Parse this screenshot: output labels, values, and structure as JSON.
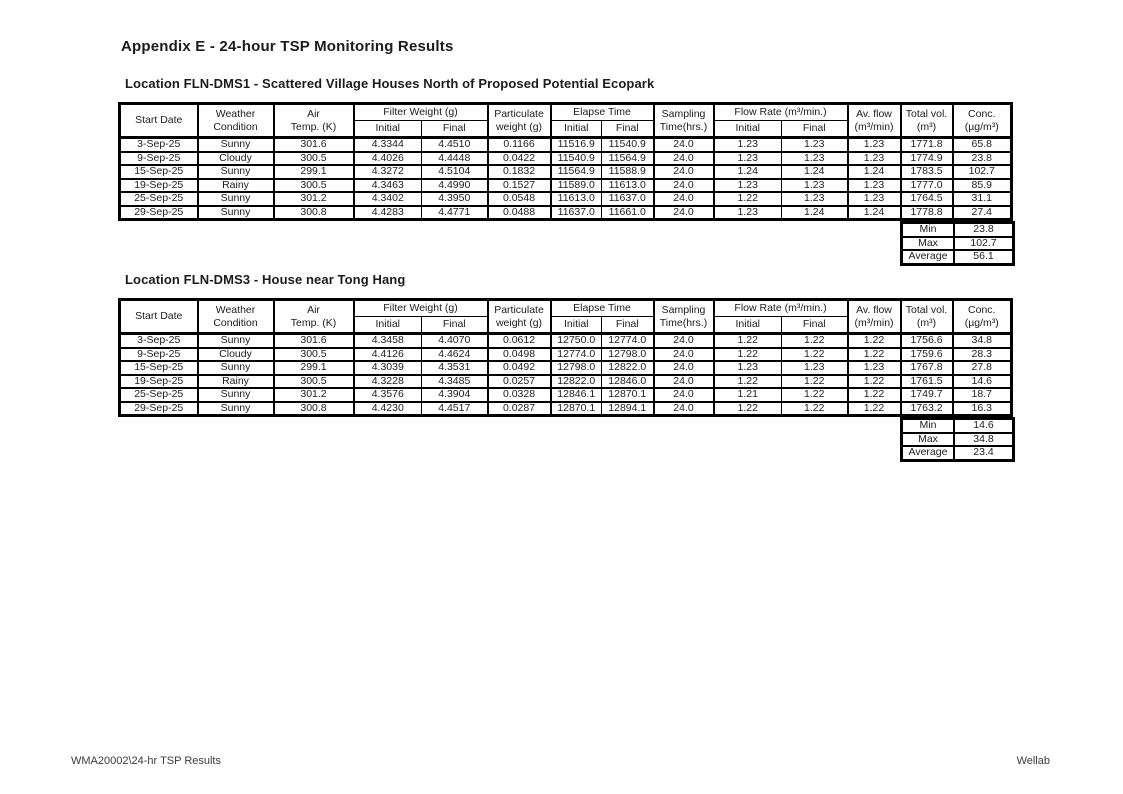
{
  "page": {
    "title": "Appendix E - 24-hour TSP Monitoring Results",
    "footer_left": "WMA20002\\24-hr TSP Results",
    "footer_right": "Wellab"
  },
  "headers": {
    "start_date": "Start Date",
    "weather": "Weather\nCondition",
    "air_temp": "Air\nTemp. (K)",
    "filter_weight": "Filter Weight (g)",
    "particulate": "Particulate\nweight (g)",
    "elapse_time": "Elapse Time",
    "sampling": "Sampling\nTime(hrs.)",
    "flow_rate": "Flow Rate (m³/min.)",
    "av_flow": "Av. flow\n(m³/min)",
    "total_vol": "Total vol.\n(m³)",
    "conc": "Conc.\n(µg/m³)",
    "initial": "Initial",
    "final": "Final"
  },
  "summary_labels": {
    "min": "Min",
    "max": "Max",
    "average": "Average"
  },
  "tables": [
    {
      "location": "Location FLN-DMS1 - Scattered Village Houses North of Proposed Potential Ecopark",
      "rows": [
        [
          "3-Sep-25",
          "Sunny",
          "301.6",
          "4.3344",
          "4.4510",
          "0.1166",
          "11516.9",
          "11540.9",
          "24.0",
          "1.23",
          "1.23",
          "1.23",
          "1771.8",
          "65.8"
        ],
        [
          "9-Sep-25",
          "Cloudy",
          "300.5",
          "4.4026",
          "4.4448",
          "0.0422",
          "11540.9",
          "11564.9",
          "24.0",
          "1.23",
          "1.23",
          "1.23",
          "1774.9",
          "23.8"
        ],
        [
          "15-Sep-25",
          "Sunny",
          "299.1",
          "4.3272",
          "4.5104",
          "0.1832",
          "11564.9",
          "11588.9",
          "24.0",
          "1.24",
          "1.24",
          "1.24",
          "1783.5",
          "102.7"
        ],
        [
          "19-Sep-25",
          "Rainy",
          "300.5",
          "4.3463",
          "4.4990",
          "0.1527",
          "11589.0",
          "11613.0",
          "24.0",
          "1.23",
          "1.23",
          "1.23",
          "1777.0",
          "85.9"
        ],
        [
          "25-Sep-25",
          "Sunny",
          "301.2",
          "4.3402",
          "4.3950",
          "0.0548",
          "11613.0",
          "11637.0",
          "24.0",
          "1.22",
          "1.23",
          "1.23",
          "1764.5",
          "31.1"
        ],
        [
          "29-Sep-25",
          "Sunny",
          "300.8",
          "4.4283",
          "4.4771",
          "0.0488",
          "11637.0",
          "11661.0",
          "24.0",
          "1.23",
          "1.24",
          "1.24",
          "1778.8",
          "27.4"
        ]
      ],
      "summary": {
        "min": "23.8",
        "max": "102.7",
        "average": "56.1"
      }
    },
    {
      "location": "Location FLN-DMS3 - House near Tong Hang",
      "rows": [
        [
          "3-Sep-25",
          "Sunny",
          "301.6",
          "4.3458",
          "4.4070",
          "0.0612",
          "12750.0",
          "12774.0",
          "24.0",
          "1.22",
          "1.22",
          "1.22",
          "1756.6",
          "34.8"
        ],
        [
          "9-Sep-25",
          "Cloudy",
          "300.5",
          "4.4126",
          "4.4624",
          "0.0498",
          "12774.0",
          "12798.0",
          "24.0",
          "1.22",
          "1.22",
          "1.22",
          "1759.6",
          "28.3"
        ],
        [
          "15-Sep-25",
          "Sunny",
          "299.1",
          "4.3039",
          "4.3531",
          "0.0492",
          "12798.0",
          "12822.0",
          "24.0",
          "1.23",
          "1.23",
          "1.23",
          "1767.8",
          "27.8"
        ],
        [
          "19-Sep-25",
          "Rainy",
          "300.5",
          "4.3228",
          "4.3485",
          "0.0257",
          "12822.0",
          "12846.0",
          "24.0",
          "1.22",
          "1.22",
          "1.22",
          "1761.5",
          "14.6"
        ],
        [
          "25-Sep-25",
          "Sunny",
          "301.2",
          "4.3576",
          "4.3904",
          "0.0328",
          "12846.1",
          "12870.1",
          "24.0",
          "1.21",
          "1.22",
          "1.22",
          "1749.7",
          "18.7"
        ],
        [
          "29-Sep-25",
          "Sunny",
          "300.8",
          "4.4230",
          "4.4517",
          "0.0287",
          "12870.1",
          "12894.1",
          "24.0",
          "1.22",
          "1.22",
          "1.22",
          "1763.2",
          "16.3"
        ]
      ],
      "summary": {
        "min": "14.6",
        "max": "34.8",
        "average": "23.4"
      }
    }
  ]
}
